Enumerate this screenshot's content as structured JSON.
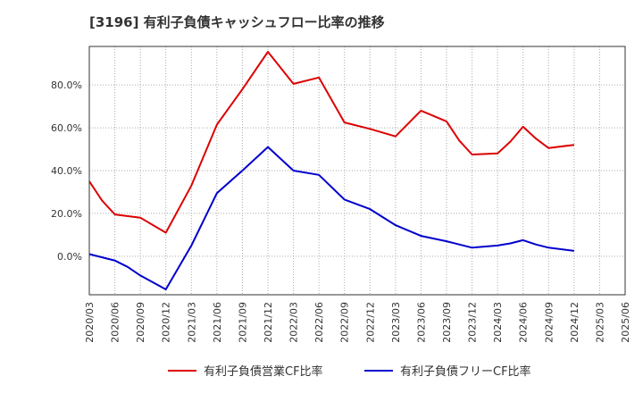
{
  "title": "[3196]  有利子負債キャッシュフロー比率の推移",
  "chart_data": {
    "type": "line",
    "title": "[3196]  有利子負債キャッシュフロー比率の推移",
    "xlabel": "",
    "ylabel": "",
    "x": [
      "2020/03",
      "2020/06",
      "2020/09",
      "2020/12",
      "2021/03",
      "2021/06",
      "2021/09",
      "2021/12",
      "2022/03",
      "2022/06",
      "2022/09",
      "2022/12",
      "2023/03",
      "2023/06",
      "2023/09",
      "2023/12",
      "2024/03",
      "2024/06",
      "2024/09",
      "2024/12",
      "2025/03",
      "2025/06"
    ],
    "ylim": [
      -18,
      98
    ],
    "yticks": [
      0,
      20,
      40,
      60,
      80
    ],
    "ytick_labels": [
      "0.0%",
      "20.0%",
      "40.0%",
      "60.0%",
      "80.0%"
    ],
    "grid": true,
    "legend_position": "bottom",
    "series": [
      {
        "name": "有利子負債営業CF比率",
        "color": "#dd0000",
        "points": [
          [
            0,
            35.0
          ],
          [
            0.5,
            26.0
          ],
          [
            1,
            19.5
          ],
          [
            2,
            18.0
          ],
          [
            3,
            11.0
          ],
          [
            4,
            33.0
          ],
          [
            5,
            61.5
          ],
          [
            6,
            78.0
          ],
          [
            7,
            95.5
          ],
          [
            8,
            80.5
          ],
          [
            9,
            83.5
          ],
          [
            10,
            62.5
          ],
          [
            11,
            59.5
          ],
          [
            12,
            56.0
          ],
          [
            13,
            68.0
          ],
          [
            14,
            63.0
          ],
          [
            14.5,
            54.0
          ],
          [
            15,
            47.5
          ],
          [
            16,
            48.0
          ],
          [
            16.5,
            53.5
          ],
          [
            17,
            60.5
          ],
          [
            17.5,
            55.0
          ],
          [
            18,
            50.5
          ],
          [
            19,
            52.0
          ]
        ]
      },
      {
        "name": "有利子負債フリーCF比率",
        "color": "#0000cc",
        "points": [
          [
            0,
            1.0
          ],
          [
            0.5,
            -0.5
          ],
          [
            1,
            -2.0
          ],
          [
            1.5,
            -5.0
          ],
          [
            2,
            -9.0
          ],
          [
            3,
            -15.5
          ],
          [
            4,
            5.0
          ],
          [
            5,
            29.5
          ],
          [
            6,
            40.0
          ],
          [
            7,
            51.0
          ],
          [
            8,
            40.0
          ],
          [
            9,
            38.0
          ],
          [
            10,
            26.5
          ],
          [
            11,
            22.0
          ],
          [
            12,
            14.5
          ],
          [
            13,
            9.5
          ],
          [
            14,
            7.0
          ],
          [
            15,
            4.0
          ],
          [
            16,
            5.0
          ],
          [
            16.5,
            6.0
          ],
          [
            17,
            7.5
          ],
          [
            17.5,
            5.5
          ],
          [
            18,
            4.0
          ],
          [
            19,
            2.5
          ]
        ]
      }
    ]
  }
}
